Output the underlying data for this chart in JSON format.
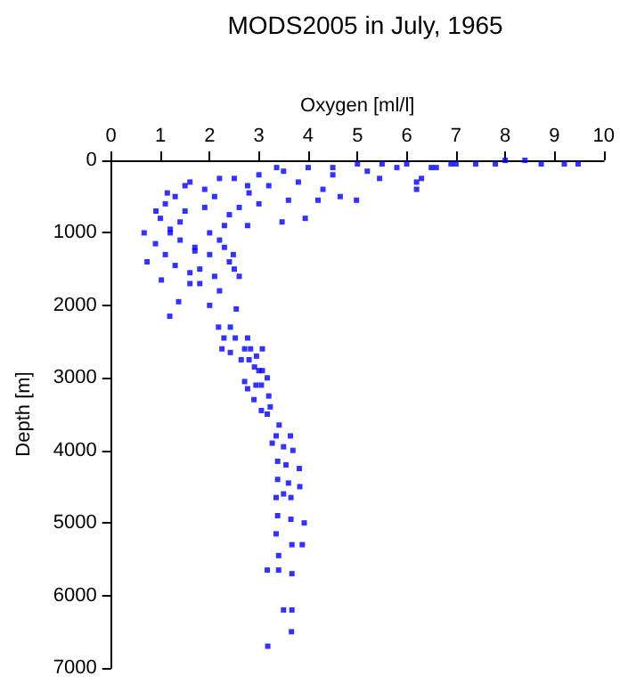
{
  "chart_data": {
    "type": "scatter",
    "title": "MODS2005 in July, 1965",
    "xlabel": "Oxygen [ml/l]",
    "ylabel": "Depth [m]",
    "xlim": [
      0,
      10
    ],
    "xticks": [
      0,
      1,
      2,
      3,
      4,
      5,
      6,
      7,
      8,
      9,
      10
    ],
    "ylim": [
      7000,
      0
    ],
    "yticks": [
      0,
      1000,
      2000,
      3000,
      4000,
      5000,
      6000,
      7000
    ],
    "grid": false,
    "marker": "square",
    "series": [
      {
        "color": "#0000ff",
        "x": [
          9.48,
          9.2,
          8.73,
          8.4,
          8.0,
          7.4,
          6.9,
          6.5,
          6.2,
          6.2,
          6.3,
          5.45,
          4.65,
          4.2,
          4.98,
          3.36,
          2.77,
          2.2,
          1.6,
          1.14,
          0.91,
          0.67,
          0.73,
          1.02,
          1.6,
          1.37,
          1.19,
          2.54,
          2.48,
          2.3,
          3.47,
          2.77,
          3.94,
          7.8,
          7.0,
          6.0,
          5.5,
          5.0,
          4.5,
          4.0,
          3.5,
          3.0,
          2.5,
          4.5,
          5.2,
          5.8,
          6.6,
          3.8,
          3.2,
          2.8,
          3.6,
          4.3,
          3.0,
          2.6,
          2.4,
          2.1,
          1.9,
          1.5,
          1.3,
          1.1,
          1.0,
          1.2,
          1.4,
          1.7,
          2.0,
          2.2,
          2.4,
          1.8,
          1.6,
          1.3,
          1.1,
          0.9,
          1.5,
          1.9,
          2.3,
          2.5,
          2.1,
          1.7,
          1.2,
          1.4,
          2.0,
          2.6,
          1.8,
          2.2,
          2.0,
          2.18,
          2.42,
          2.52,
          2.29,
          2.77,
          2.42,
          2.25,
          2.71,
          2.83,
          3.07,
          2.64,
          2.8,
          2.95,
          3.17,
          3.0,
          2.91,
          3.07,
          3.05,
          2.94,
          2.77,
          2.71,
          3.2,
          2.9,
          3.17,
          3.23,
          3.05,
          3.41,
          3.64,
          3.35,
          3.69,
          3.5,
          3.27,
          3.82,
          3.55,
          3.38,
          3.83,
          3.6,
          3.38,
          3.65,
          3.35,
          3.5,
          3.38,
          3.65,
          3.35,
          3.92,
          3.88,
          3.67,
          3.4,
          3.17,
          3.4,
          3.67,
          3.5,
          3.67,
          3.66,
          3.18
        ],
        "values": [
          50,
          50,
          50,
          0,
          0,
          50,
          50,
          100,
          300,
          400,
          250,
          250,
          500,
          550,
          550,
          100,
          350,
          250,
          300,
          450,
          700,
          1000,
          1400,
          1650,
          1700,
          1950,
          2150,
          2050,
          1300,
          1200,
          850,
          900,
          800,
          50,
          50,
          50,
          50,
          50,
          100,
          100,
          150,
          200,
          250,
          200,
          150,
          100,
          100,
          300,
          350,
          450,
          550,
          400,
          600,
          650,
          750,
          500,
          400,
          350,
          500,
          600,
          800,
          950,
          1100,
          1200,
          1000,
          1100,
          1400,
          1500,
          1550,
          1450,
          1300,
          1150,
          700,
          650,
          900,
          1500,
          1600,
          1250,
          1000,
          850,
          1300,
          1600,
          1700,
          1800,
          2000,
          2300,
          2300,
          2450,
          2450,
          2450,
          2650,
          2600,
          2600,
          2600,
          2600,
          2750,
          2750,
          2700,
          3000,
          2900,
          2850,
          2900,
          3100,
          3100,
          3150,
          3050,
          3250,
          3300,
          3500,
          3400,
          3450,
          3650,
          3800,
          3800,
          4000,
          3950,
          3900,
          4250,
          4200,
          4150,
          4500,
          4450,
          4400,
          4650,
          4650,
          4600,
          4900,
          4950,
          5150,
          5000,
          5300,
          5300,
          5450,
          5650,
          5650,
          5700,
          6200,
          6200,
          6500,
          6700
        ]
      }
    ]
  }
}
